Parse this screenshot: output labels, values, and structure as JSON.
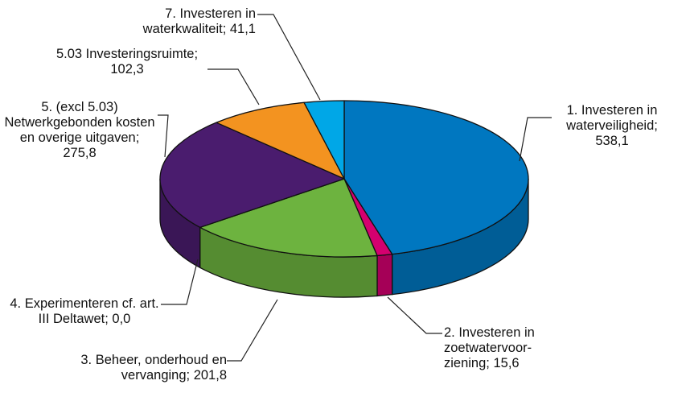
{
  "chart_data": {
    "type": "pie3d",
    "categories": [
      "1. Investeren in waterveiligheid;",
      "2. Investeren in zoetwatervoor­ziening;",
      "3. Beheer, onderhoud en vervanging;",
      "4. Experimenteren cf. art. III Deltawet;",
      "5. (excl 5.03) Netwerkgebonden kosten en overige uitgaven;",
      "5.03 Investerings­ruimte;",
      "7. Investeren in waterkwaliteit;"
    ],
    "values": [
      538.1,
      15.6,
      201.8,
      0.0,
      275.8,
      102.3,
      41.1
    ],
    "value_labels": [
      "538,1",
      "15,6",
      "201,8",
      "0,0",
      "275,8",
      "102,3",
      "41,1"
    ],
    "colors": [
      "#0077c0",
      "#d4006f",
      "#6db33f",
      "#2e6b1f",
      "#4a1c6e",
      "#f39320",
      "#00a7e7"
    ]
  }
}
